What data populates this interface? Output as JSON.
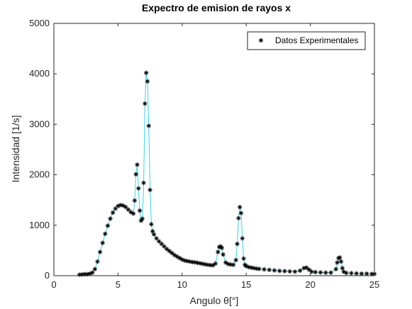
{
  "chart_data": {
    "type": "scatter",
    "title": "Expectro de emision de rayos x",
    "xlabel": "Angulo θ[°]",
    "ylabel": "Intensidad [1/s]",
    "xlim": [
      0,
      25
    ],
    "ylim": [
      0,
      5000
    ],
    "xticks": [
      0,
      5,
      10,
      15,
      20,
      25
    ],
    "yticks": [
      0,
      1000,
      2000,
      3000,
      4000,
      5000
    ],
    "grid": false,
    "legend_position": "top-right",
    "series": [
      {
        "name": "Datos Experimentales",
        "marker": "asterisk",
        "marker_color": "#000000",
        "line_color": "#33d6e6",
        "x": [
          2.0,
          2.2,
          2.4,
          2.6,
          2.8,
          3.0,
          3.2,
          3.4,
          3.6,
          3.8,
          4.0,
          4.2,
          4.4,
          4.6,
          4.8,
          5.0,
          5.2,
          5.4,
          5.6,
          5.8,
          6.0,
          6.2,
          6.3,
          6.4,
          6.5,
          6.6,
          6.7,
          6.8,
          6.9,
          7.0,
          7.1,
          7.2,
          7.3,
          7.4,
          7.5,
          7.6,
          7.7,
          7.8,
          8.0,
          8.2,
          8.4,
          8.6,
          8.8,
          9.0,
          9.2,
          9.4,
          9.6,
          9.8,
          10.0,
          10.2,
          10.4,
          10.6,
          10.8,
          11.0,
          11.2,
          11.4,
          11.6,
          11.8,
          12.0,
          12.2,
          12.4,
          12.6,
          12.8,
          12.9,
          13.0,
          13.1,
          13.2,
          13.4,
          13.6,
          13.8,
          14.0,
          14.2,
          14.3,
          14.4,
          14.5,
          14.6,
          14.7,
          14.8,
          14.9,
          15.0,
          15.2,
          15.4,
          15.6,
          15.8,
          16.0,
          16.4,
          16.8,
          17.2,
          17.6,
          18.0,
          18.4,
          18.8,
          19.2,
          19.5,
          19.7,
          19.9,
          20.1,
          20.4,
          20.8,
          21.2,
          21.6,
          22.0,
          22.1,
          22.2,
          22.3,
          22.4,
          22.5,
          22.6,
          22.8,
          23.2,
          23.6,
          24.0,
          24.4,
          24.8,
          25.0
        ],
        "y": [
          20,
          25,
          30,
          30,
          40,
          60,
          130,
          280,
          470,
          650,
          830,
          990,
          1130,
          1250,
          1330,
          1380,
          1400,
          1390,
          1360,
          1310,
          1260,
          1230,
          1490,
          2010,
          2200,
          1730,
          1290,
          1090,
          1130,
          1840,
          3410,
          4020,
          3850,
          2970,
          1700,
          1020,
          880,
          820,
          740,
          680,
          630,
          580,
          530,
          490,
          450,
          410,
          380,
          350,
          320,
          300,
          290,
          280,
          270,
          265,
          255,
          245,
          235,
          225,
          215,
          210,
          205,
          240,
          470,
          570,
          580,
          550,
          420,
          260,
          230,
          220,
          215,
          310,
          630,
          1140,
          1360,
          1240,
          740,
          340,
          215,
          190,
          170,
          160,
          150,
          140,
          135,
          125,
          115,
          105,
          95,
          90,
          85,
          80,
          100,
          150,
          160,
          120,
          80,
          70,
          65,
          60,
          60,
          130,
          260,
          350,
          360,
          280,
          150,
          80,
          55,
          50,
          45,
          40,
          40,
          35,
          35
        ]
      }
    ],
    "legend": [
      {
        "label": "Datos Experimentales",
        "marker": "*"
      }
    ]
  }
}
